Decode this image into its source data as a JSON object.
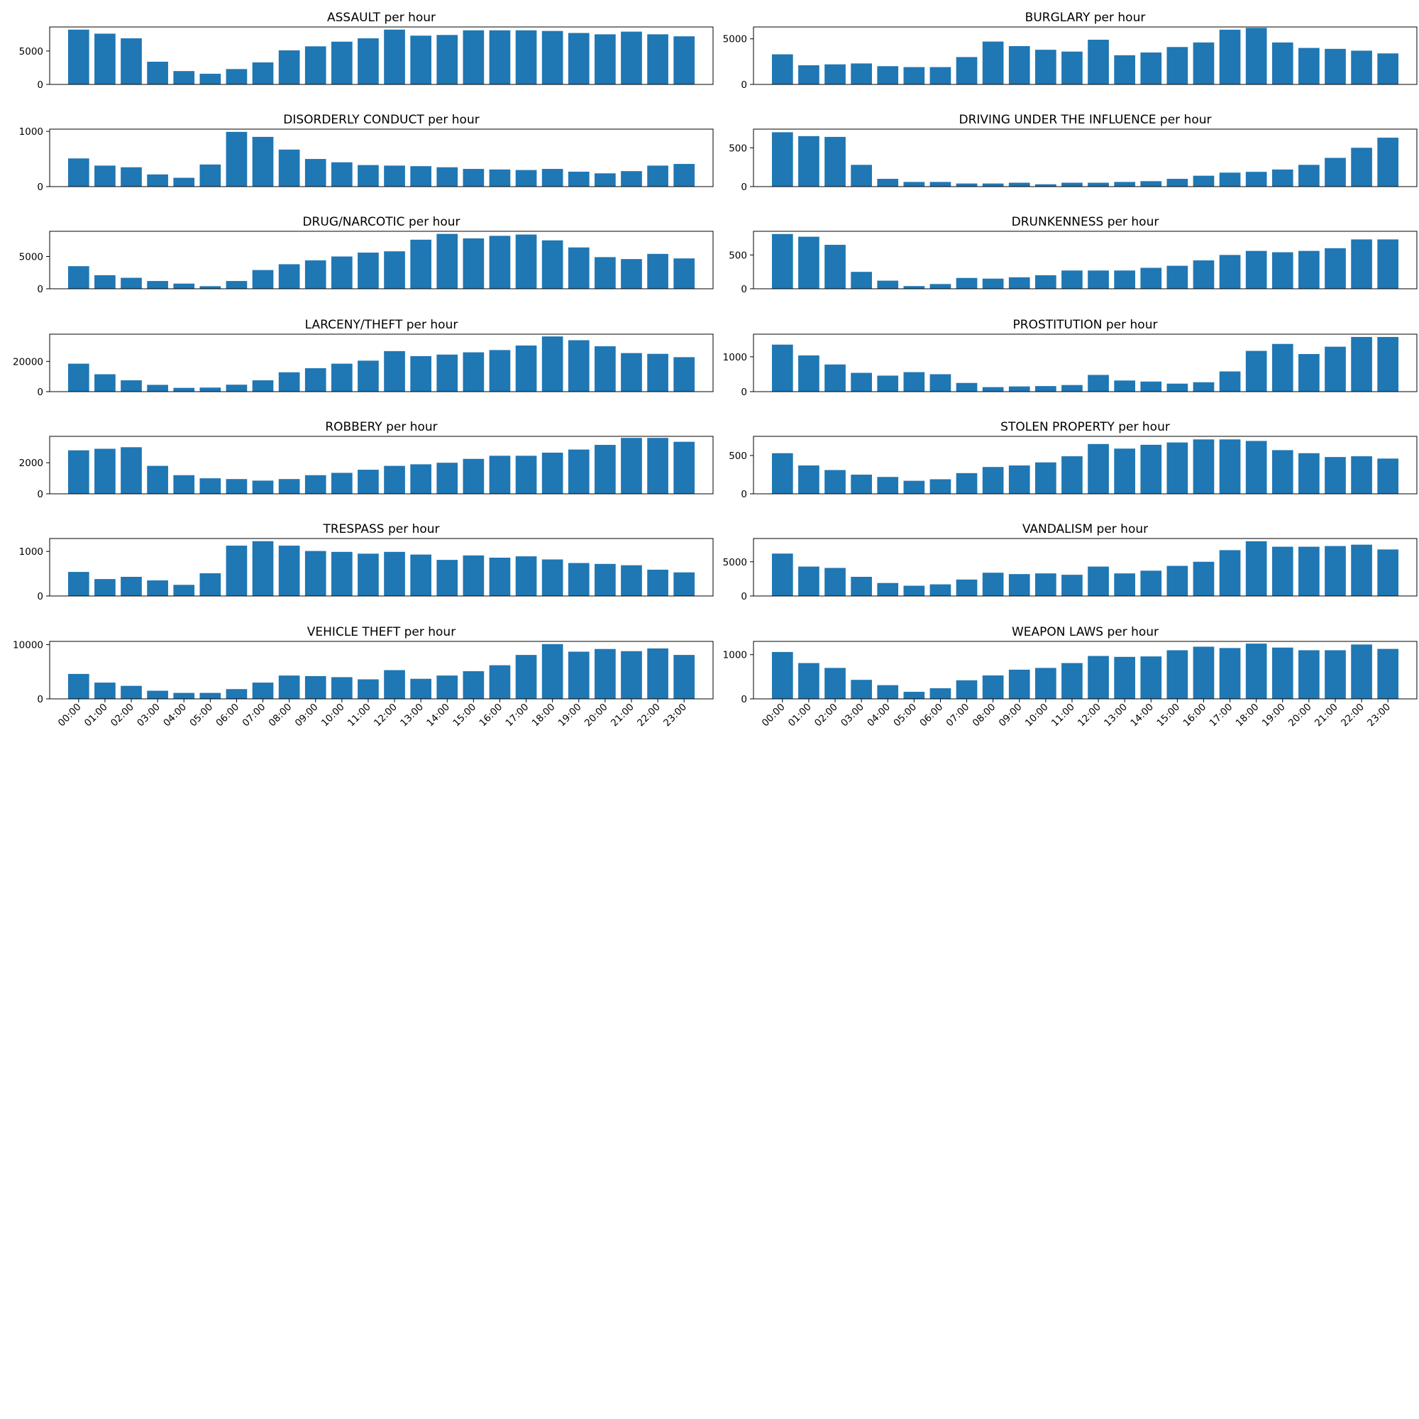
{
  "colors": {
    "bar": "#1f77b4",
    "axes": "#000000",
    "background": "#ffffff"
  },
  "chart_data": [
    {
      "type": "bar",
      "title": "ASSAULT per hour",
      "ylim": [
        0,
        8600
      ],
      "yticks": [
        0,
        5000
      ],
      "categories": [
        "00:00",
        "01:00",
        "02:00",
        "03:00",
        "04:00",
        "05:00",
        "06:00",
        "07:00",
        "08:00",
        "09:00",
        "10:00",
        "11:00",
        "12:00",
        "13:00",
        "14:00",
        "15:00",
        "16:00",
        "17:00",
        "18:00",
        "19:00",
        "20:00",
        "21:00",
        "22:00",
        "23:00"
      ],
      "values": [
        8200,
        7600,
        6900,
        3400,
        2000,
        1600,
        2300,
        3300,
        5100,
        5700,
        6400,
        6900,
        8200,
        7300,
        7400,
        8100,
        8100,
        8100,
        8000,
        7700,
        7500,
        7900,
        7500,
        7200
      ],
      "show_xticks": false
    },
    {
      "type": "bar",
      "title": "BURGLARY per hour",
      "ylim": [
        0,
        6300
      ],
      "yticks": [
        0,
        5000
      ],
      "categories": [
        "00:00",
        "01:00",
        "02:00",
        "03:00",
        "04:00",
        "05:00",
        "06:00",
        "07:00",
        "08:00",
        "09:00",
        "10:00",
        "11:00",
        "12:00",
        "13:00",
        "14:00",
        "15:00",
        "16:00",
        "17:00",
        "18:00",
        "19:00",
        "20:00",
        "21:00",
        "22:00",
        "23:00"
      ],
      "values": [
        3300,
        2100,
        2200,
        2300,
        2000,
        1900,
        1900,
        3000,
        4700,
        4200,
        3800,
        3600,
        4900,
        3200,
        3500,
        4100,
        4600,
        6000,
        6200,
        4600,
        4000,
        3900,
        3700,
        3400
      ],
      "show_xticks": false
    },
    {
      "type": "bar",
      "title": "DISORDERLY CONDUCT per hour",
      "ylim": [
        0,
        1040
      ],
      "yticks": [
        0,
        1000
      ],
      "categories": [
        "00:00",
        "01:00",
        "02:00",
        "03:00",
        "04:00",
        "05:00",
        "06:00",
        "07:00",
        "08:00",
        "09:00",
        "10:00",
        "11:00",
        "12:00",
        "13:00",
        "14:00",
        "15:00",
        "16:00",
        "17:00",
        "18:00",
        "19:00",
        "20:00",
        "21:00",
        "22:00",
        "23:00"
      ],
      "values": [
        510,
        380,
        350,
        220,
        160,
        400,
        990,
        900,
        670,
        500,
        440,
        390,
        380,
        370,
        350,
        320,
        310,
        300,
        320,
        270,
        240,
        280,
        380,
        410
      ],
      "show_xticks": false
    },
    {
      "type": "bar",
      "title": "DRIVING UNDER THE INFLUENCE per hour",
      "ylim": [
        0,
        740
      ],
      "yticks": [
        0,
        500
      ],
      "categories": [
        "00:00",
        "01:00",
        "02:00",
        "03:00",
        "04:00",
        "05:00",
        "06:00",
        "07:00",
        "08:00",
        "09:00",
        "10:00",
        "11:00",
        "12:00",
        "13:00",
        "14:00",
        "15:00",
        "16:00",
        "17:00",
        "18:00",
        "19:00",
        "20:00",
        "21:00",
        "22:00",
        "23:00"
      ],
      "values": [
        700,
        650,
        640,
        280,
        100,
        60,
        60,
        40,
        40,
        50,
        30,
        50,
        50,
        60,
        70,
        100,
        140,
        180,
        190,
        220,
        280,
        370,
        500,
        630
      ],
      "show_xticks": false
    },
    {
      "type": "bar",
      "title": "DRUG/NARCOTIC per hour",
      "ylim": [
        0,
        8900
      ],
      "yticks": [
        0,
        5000
      ],
      "categories": [
        "00:00",
        "01:00",
        "02:00",
        "03:00",
        "04:00",
        "05:00",
        "06:00",
        "07:00",
        "08:00",
        "09:00",
        "10:00",
        "11:00",
        "12:00",
        "13:00",
        "14:00",
        "15:00",
        "16:00",
        "17:00",
        "18:00",
        "19:00",
        "20:00",
        "21:00",
        "22:00",
        "23:00"
      ],
      "values": [
        3500,
        2100,
        1700,
        1200,
        800,
        400,
        1200,
        2900,
        3800,
        4400,
        5000,
        5600,
        5800,
        7600,
        8500,
        7800,
        8200,
        8400,
        7500,
        6400,
        4900,
        4600,
        5400,
        4700
      ],
      "show_xticks": false
    },
    {
      "type": "bar",
      "title": "DRUNKENNESS per hour",
      "ylim": [
        0,
        850
      ],
      "yticks": [
        0,
        500
      ],
      "categories": [
        "00:00",
        "01:00",
        "02:00",
        "03:00",
        "04:00",
        "05:00",
        "06:00",
        "07:00",
        "08:00",
        "09:00",
        "10:00",
        "11:00",
        "12:00",
        "13:00",
        "14:00",
        "15:00",
        "16:00",
        "17:00",
        "18:00",
        "19:00",
        "20:00",
        "21:00",
        "22:00",
        "23:00"
      ],
      "values": [
        810,
        770,
        650,
        250,
        120,
        40,
        70,
        160,
        150,
        170,
        200,
        270,
        270,
        270,
        310,
        340,
        420,
        500,
        560,
        540,
        560,
        600,
        730,
        730
      ],
      "show_xticks": false
    },
    {
      "type": "bar",
      "title": "LARCENY/THEFT per hour",
      "ylim": [
        0,
        38000
      ],
      "yticks": [
        0,
        20000
      ],
      "categories": [
        "00:00",
        "01:00",
        "02:00",
        "03:00",
        "04:00",
        "05:00",
        "06:00",
        "07:00",
        "08:00",
        "09:00",
        "10:00",
        "11:00",
        "12:00",
        "13:00",
        "14:00",
        "15:00",
        "16:00",
        "17:00",
        "18:00",
        "19:00",
        "20:00",
        "21:00",
        "22:00",
        "23:00"
      ],
      "values": [
        18500,
        11500,
        7500,
        4500,
        2500,
        2700,
        4600,
        7500,
        12800,
        15500,
        18500,
        20500,
        26800,
        23500,
        24500,
        26000,
        27500,
        30500,
        36500,
        34000,
        30000,
        25500,
        25000,
        22800
      ],
      "show_xticks": false
    },
    {
      "type": "bar",
      "title": "PROSTITUTION per hour",
      "ylim": [
        0,
        1650
      ],
      "yticks": [
        0,
        1000
      ],
      "categories": [
        "00:00",
        "01:00",
        "02:00",
        "03:00",
        "04:00",
        "05:00",
        "06:00",
        "07:00",
        "08:00",
        "09:00",
        "10:00",
        "11:00",
        "12:00",
        "13:00",
        "14:00",
        "15:00",
        "16:00",
        "17:00",
        "18:00",
        "19:00",
        "20:00",
        "21:00",
        "22:00",
        "23:00"
      ],
      "values": [
        1350,
        1040,
        780,
        540,
        460,
        560,
        500,
        250,
        130,
        150,
        160,
        190,
        480,
        320,
        290,
        230,
        270,
        580,
        1170,
        1370,
        1080,
        1290,
        1570,
        1570
      ],
      "show_xticks": false
    },
    {
      "type": "bar",
      "title": "ROBBERY per hour",
      "ylim": [
        0,
        3700
      ],
      "yticks": [
        0,
        2000
      ],
      "categories": [
        "00:00",
        "01:00",
        "02:00",
        "03:00",
        "04:00",
        "05:00",
        "06:00",
        "07:00",
        "08:00",
        "09:00",
        "10:00",
        "11:00",
        "12:00",
        "13:00",
        "14:00",
        "15:00",
        "16:00",
        "17:00",
        "18:00",
        "19:00",
        "20:00",
        "21:00",
        "22:00",
        "23:00"
      ],
      "values": [
        2800,
        2900,
        3000,
        1800,
        1200,
        1000,
        950,
        850,
        950,
        1200,
        1350,
        1550,
        1800,
        1900,
        2000,
        2250,
        2450,
        2450,
        2650,
        2850,
        3150,
        3600,
        3600,
        3350
      ],
      "show_xticks": false
    },
    {
      "type": "bar",
      "title": "STOLEN PROPERTY per hour",
      "ylim": [
        0,
        750
      ],
      "yticks": [
        0,
        500
      ],
      "categories": [
        "00:00",
        "01:00",
        "02:00",
        "03:00",
        "04:00",
        "05:00",
        "06:00",
        "07:00",
        "08:00",
        "09:00",
        "10:00",
        "11:00",
        "12:00",
        "13:00",
        "14:00",
        "15:00",
        "16:00",
        "17:00",
        "18:00",
        "19:00",
        "20:00",
        "21:00",
        "22:00",
        "23:00"
      ],
      "values": [
        530,
        370,
        310,
        250,
        220,
        170,
        190,
        270,
        350,
        370,
        410,
        490,
        650,
        590,
        640,
        670,
        710,
        710,
        690,
        570,
        530,
        480,
        490,
        460
      ],
      "show_xticks": false
    },
    {
      "type": "bar",
      "title": "TRESPASS per hour",
      "ylim": [
        0,
        1290
      ],
      "yticks": [
        0,
        1000
      ],
      "categories": [
        "00:00",
        "01:00",
        "02:00",
        "03:00",
        "04:00",
        "05:00",
        "06:00",
        "07:00",
        "08:00",
        "09:00",
        "10:00",
        "11:00",
        "12:00",
        "13:00",
        "14:00",
        "15:00",
        "16:00",
        "17:00",
        "18:00",
        "19:00",
        "20:00",
        "21:00",
        "22:00",
        "23:00"
      ],
      "values": [
        540,
        380,
        430,
        350,
        250,
        510,
        1130,
        1230,
        1130,
        1010,
        990,
        950,
        990,
        930,
        810,
        910,
        860,
        890,
        820,
        740,
        720,
        690,
        590,
        530
      ],
      "show_xticks": false
    },
    {
      "type": "bar",
      "title": "VANDALISM per hour",
      "ylim": [
        0,
        8400
      ],
      "yticks": [
        0,
        5000
      ],
      "categories": [
        "00:00",
        "01:00",
        "02:00",
        "03:00",
        "04:00",
        "05:00",
        "06:00",
        "07:00",
        "08:00",
        "09:00",
        "10:00",
        "11:00",
        "12:00",
        "13:00",
        "14:00",
        "15:00",
        "16:00",
        "17:00",
        "18:00",
        "19:00",
        "20:00",
        "21:00",
        "22:00",
        "23:00"
      ],
      "values": [
        6200,
        4300,
        4100,
        2800,
        1900,
        1500,
        1700,
        2400,
        3400,
        3200,
        3300,
        3100,
        4300,
        3300,
        3700,
        4400,
        5000,
        6700,
        8000,
        7200,
        7200,
        7300,
        7500,
        6800
      ],
      "show_xticks": false
    },
    {
      "type": "bar",
      "title": "VEHICLE THEFT per hour",
      "ylim": [
        0,
        10600
      ],
      "yticks": [
        0,
        10000
      ],
      "categories": [
        "00:00",
        "01:00",
        "02:00",
        "03:00",
        "04:00",
        "05:00",
        "06:00",
        "07:00",
        "08:00",
        "09:00",
        "10:00",
        "11:00",
        "12:00",
        "13:00",
        "14:00",
        "15:00",
        "16:00",
        "17:00",
        "18:00",
        "19:00",
        "20:00",
        "21:00",
        "22:00",
        "23:00"
      ],
      "values": [
        4600,
        3000,
        2400,
        1500,
        1100,
        1100,
        1800,
        3000,
        4300,
        4200,
        4000,
        3600,
        5300,
        3700,
        4300,
        5100,
        6200,
        8100,
        10100,
        8700,
        9200,
        8800,
        9300,
        8100
      ],
      "show_xticks": true
    },
    {
      "type": "bar",
      "title": "WEAPON LAWS per hour",
      "ylim": [
        0,
        1300
      ],
      "yticks": [
        0,
        1000
      ],
      "categories": [
        "00:00",
        "01:00",
        "02:00",
        "03:00",
        "04:00",
        "05:00",
        "06:00",
        "07:00",
        "08:00",
        "09:00",
        "10:00",
        "11:00",
        "12:00",
        "13:00",
        "14:00",
        "15:00",
        "16:00",
        "17:00",
        "18:00",
        "19:00",
        "20:00",
        "21:00",
        "22:00",
        "23:00"
      ],
      "values": [
        1060,
        810,
        700,
        430,
        310,
        160,
        240,
        420,
        530,
        660,
        700,
        810,
        970,
        950,
        960,
        1100,
        1180,
        1150,
        1250,
        1160,
        1100,
        1100,
        1230,
        1130
      ],
      "show_xticks": true
    }
  ]
}
